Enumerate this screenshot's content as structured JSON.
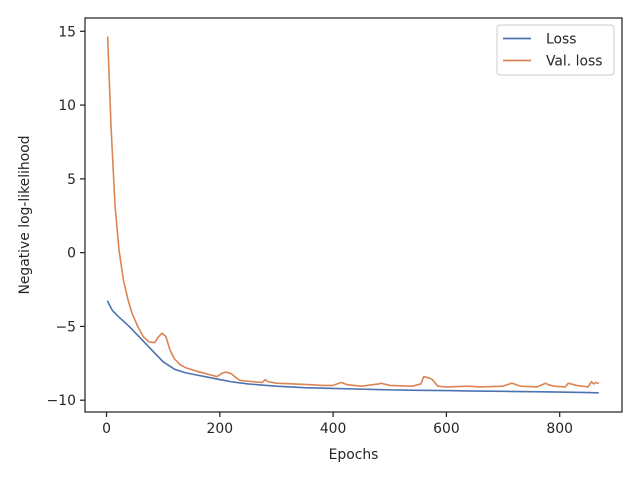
{
  "chart_data": {
    "type": "line",
    "title": "",
    "xlabel": "Epochs",
    "ylabel": "Negative log-likelihood",
    "xlim": [
      -38,
      910
    ],
    "ylim": [
      -10.8,
      15.9
    ],
    "xticks": [
      0,
      200,
      400,
      600,
      800
    ],
    "yticks": [
      -10,
      -5,
      0,
      5,
      10,
      15
    ],
    "grid": false,
    "legend_position": "upper right",
    "series": [
      {
        "name": "Loss",
        "color": "#4c72b0",
        "x": [
          2,
          10,
          20,
          40,
          60,
          80,
          100,
          120,
          140,
          160,
          180,
          200,
          220,
          250,
          300,
          350,
          400,
          450,
          500,
          550,
          600,
          650,
          700,
          750,
          800,
          850,
          868
        ],
        "y": [
          -3.3,
          -3.9,
          -4.3,
          -5.0,
          -5.8,
          -6.6,
          -7.4,
          -7.9,
          -8.15,
          -8.3,
          -8.45,
          -8.6,
          -8.75,
          -8.9,
          -9.05,
          -9.15,
          -9.2,
          -9.25,
          -9.3,
          -9.33,
          -9.35,
          -9.38,
          -9.4,
          -9.42,
          -9.45,
          -9.48,
          -9.5
        ]
      },
      {
        "name": "Val. loss",
        "color": "#dd8452",
        "x": [
          2,
          8,
          15,
          22,
          30,
          38,
          45,
          55,
          65,
          75,
          85,
          92,
          98,
          105,
          112,
          120,
          130,
          140,
          160,
          180,
          195,
          205,
          212,
          220,
          228,
          235,
          245,
          260,
          275,
          280,
          285,
          300,
          330,
          360,
          380,
          400,
          410,
          415,
          425,
          450,
          480,
          485,
          500,
          540,
          555,
          560,
          565,
          570,
          575,
          585,
          600,
          640,
          660,
          700,
          715,
          720,
          730,
          760,
          775,
          780,
          790,
          810,
          815,
          820,
          830,
          840,
          850,
          856,
          860,
          864,
          868
        ],
        "y": [
          14.6,
          8.5,
          3.2,
          0.2,
          -1.9,
          -3.2,
          -4.1,
          -5.0,
          -5.7,
          -6.05,
          -6.1,
          -5.7,
          -5.45,
          -5.7,
          -6.6,
          -7.2,
          -7.6,
          -7.8,
          -8.05,
          -8.25,
          -8.4,
          -8.15,
          -8.1,
          -8.2,
          -8.45,
          -8.65,
          -8.7,
          -8.75,
          -8.8,
          -8.6,
          -8.75,
          -8.85,
          -8.9,
          -8.95,
          -9.0,
          -9.0,
          -8.85,
          -8.8,
          -8.95,
          -9.05,
          -8.9,
          -8.85,
          -9.0,
          -9.05,
          -8.9,
          -8.4,
          -8.45,
          -8.5,
          -8.6,
          -9.05,
          -9.1,
          -9.05,
          -9.1,
          -9.05,
          -8.85,
          -8.9,
          -9.05,
          -9.1,
          -8.85,
          -8.95,
          -9.05,
          -9.1,
          -8.85,
          -8.9,
          -9.0,
          -9.05,
          -9.1,
          -8.75,
          -8.9,
          -8.8,
          -8.85
        ]
      }
    ]
  }
}
